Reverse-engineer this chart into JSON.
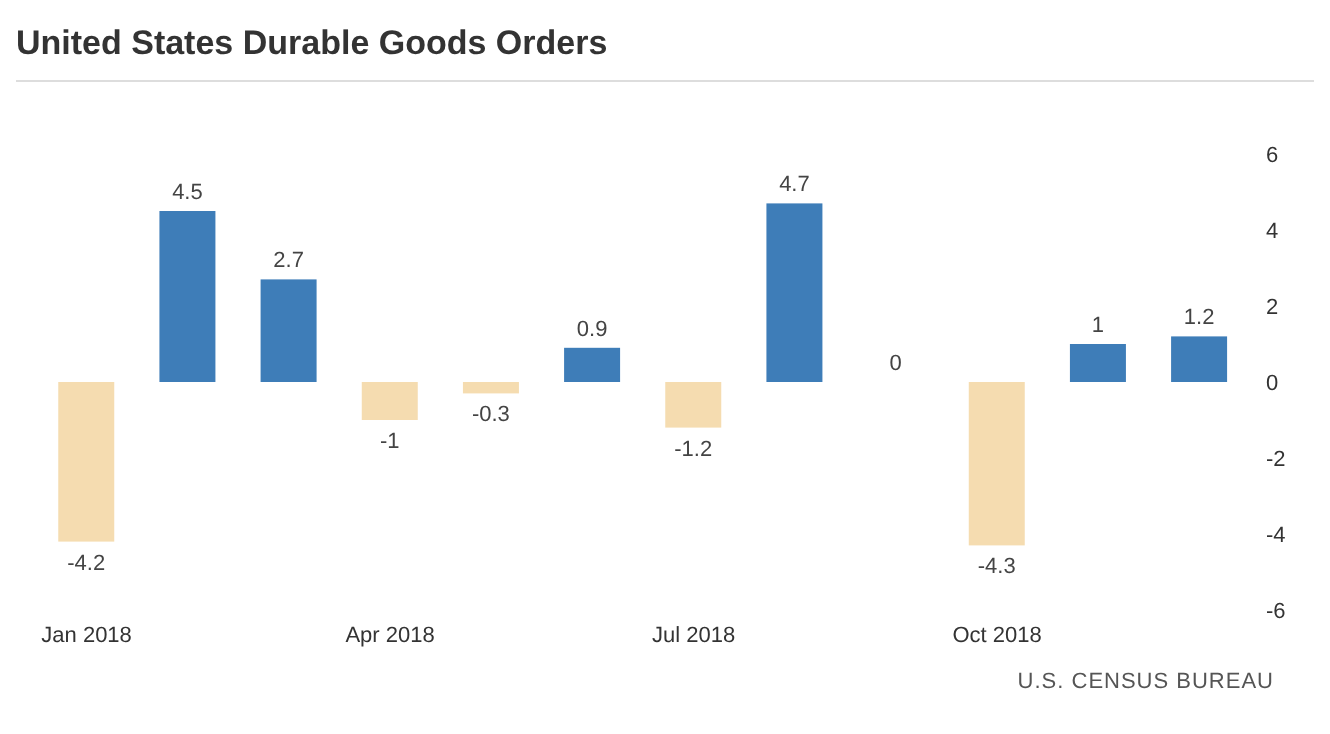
{
  "chart_data": {
    "type": "bar",
    "title": "United States Durable Goods Orders",
    "categories": [
      "Jan 2018",
      null,
      null,
      "Apr 2018",
      null,
      null,
      "Jul 2018",
      null,
      null,
      "Oct 2018",
      null,
      null
    ],
    "values": [
      -4.2,
      4.5,
      2.7,
      -1,
      -0.3,
      0.9,
      -1.2,
      4.7,
      0,
      -4.3,
      1,
      1.2
    ],
    "colors": [
      "#f5dcb0",
      "#3e7db8",
      "#3e7db8",
      "#f5dcb0",
      "#f5dcb0",
      "#3e7db8",
      "#f5dcb0",
      "#3e7db8",
      "#3e7db8",
      "#f5dcb0",
      "#3e7db8",
      "#3e7db8"
    ],
    "ylim": [
      -6,
      6
    ],
    "yticks": [
      -6,
      -4,
      -2,
      0,
      2,
      4,
      6
    ],
    "grid": false,
    "data_labels": true,
    "legend": false,
    "annotations": [
      "U.S. CENSUS BUREAU"
    ]
  }
}
